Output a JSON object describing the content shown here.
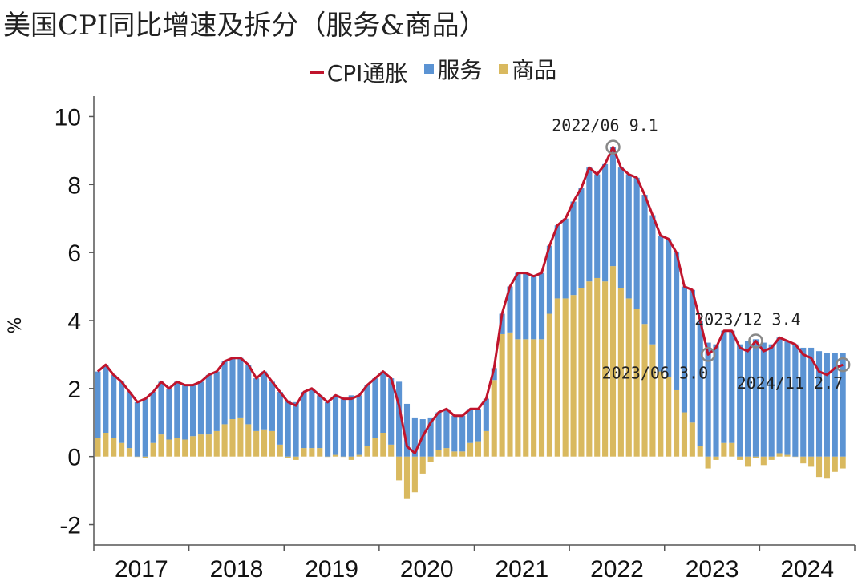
{
  "title": "美国CPI同比增速及拆分（服务&商品）",
  "legend": [
    {
      "label": "CPI通胀",
      "kind": "line",
      "color": "#c0142c"
    },
    {
      "label": "服务",
      "kind": "box",
      "color": "#5b93d3"
    },
    {
      "label": "商品",
      "kind": "box",
      "color": "#d9b95f"
    }
  ],
  "chart_data": {
    "type": "bar",
    "ylabel": "%",
    "ylim": [
      -2.6,
      10.6
    ],
    "yticks": [
      -2,
      0,
      2,
      4,
      6,
      8,
      10
    ],
    "start": "2017-01",
    "xlabels": [
      "2017",
      "2018",
      "2019",
      "2020",
      "2021",
      "2022",
      "2023",
      "2024"
    ],
    "series": [
      {
        "name": "CPI通胀",
        "type": "line",
        "color": "#c0142c",
        "values": [
          2.5,
          2.7,
          2.4,
          2.2,
          1.9,
          1.6,
          1.7,
          1.9,
          2.2,
          2.0,
          2.2,
          2.1,
          2.1,
          2.2,
          2.4,
          2.5,
          2.8,
          2.9,
          2.9,
          2.7,
          2.3,
          2.5,
          2.2,
          1.9,
          1.6,
          1.5,
          1.9,
          2.0,
          1.8,
          1.6,
          1.8,
          1.7,
          1.7,
          1.8,
          2.1,
          2.3,
          2.5,
          2.3,
          1.5,
          0.3,
          0.1,
          0.6,
          1.0,
          1.3,
          1.4,
          1.2,
          1.2,
          1.4,
          1.4,
          1.7,
          2.6,
          4.2,
          5.0,
          5.4,
          5.4,
          5.3,
          5.4,
          6.2,
          6.8,
          7.0,
          7.5,
          7.9,
          8.5,
          8.3,
          8.6,
          9.1,
          8.5,
          8.3,
          8.2,
          7.7,
          7.1,
          6.5,
          6.4,
          6.0,
          5.0,
          4.9,
          4.0,
          3.0,
          3.2,
          3.7,
          3.7,
          3.2,
          3.1,
          3.4,
          3.1,
          3.2,
          3.5,
          3.4,
          3.3,
          3.0,
          2.9,
          2.5,
          2.4,
          2.6,
          2.7
        ]
      },
      {
        "name": "服务",
        "type": "bar",
        "color": "#5b93d3",
        "values": [
          1.95,
          2.0,
          1.85,
          1.8,
          1.65,
          1.6,
          1.7,
          1.5,
          1.55,
          1.5,
          1.65,
          1.6,
          1.5,
          1.55,
          1.75,
          1.75,
          1.85,
          1.8,
          1.75,
          1.75,
          1.55,
          1.7,
          1.45,
          1.55,
          1.65,
          1.6,
          1.65,
          1.75,
          1.55,
          1.6,
          1.75,
          1.7,
          1.8,
          1.75,
          1.8,
          1.75,
          1.8,
          1.95,
          2.2,
          1.55,
          1.15,
          1.1,
          1.15,
          1.1,
          1.15,
          1.05,
          1.05,
          1.0,
          0.95,
          0.95,
          0.35,
          0.6,
          1.35,
          1.95,
          1.95,
          1.85,
          1.95,
          2.0,
          2.15,
          2.35,
          2.75,
          2.95,
          3.35,
          3.05,
          3.45,
          3.5,
          3.55,
          3.65,
          3.85,
          3.8,
          3.8,
          4.0,
          4.05,
          4.05,
          3.7,
          3.9,
          3.7,
          3.35,
          3.3,
          3.3,
          3.3,
          3.3,
          3.4,
          3.45,
          3.35,
          3.3,
          3.4,
          3.35,
          3.3,
          3.2,
          3.2,
          3.1,
          3.05,
          3.05,
          3.05
        ]
      },
      {
        "name": "商品",
        "type": "bar",
        "color": "#d9b95f",
        "values": [
          0.55,
          0.7,
          0.55,
          0.4,
          0.25,
          0.0,
          -0.05,
          0.4,
          0.65,
          0.5,
          0.55,
          0.5,
          0.6,
          0.65,
          0.65,
          0.75,
          0.95,
          1.1,
          1.15,
          0.95,
          0.75,
          0.8,
          0.75,
          0.35,
          -0.05,
          -0.1,
          0.25,
          0.25,
          0.25,
          0.0,
          0.05,
          0.0,
          -0.1,
          0.05,
          0.3,
          0.55,
          0.7,
          0.35,
          -0.7,
          -1.25,
          -1.05,
          -0.5,
          -0.15,
          0.2,
          0.25,
          0.15,
          0.15,
          0.4,
          0.45,
          0.75,
          2.25,
          3.6,
          3.65,
          3.45,
          3.45,
          3.45,
          3.45,
          4.2,
          4.65,
          4.65,
          4.75,
          4.95,
          5.15,
          5.25,
          5.15,
          5.6,
          4.95,
          4.65,
          4.35,
          3.9,
          3.3,
          2.5,
          2.35,
          1.95,
          1.3,
          1.0,
          0.3,
          -0.35,
          -0.1,
          0.4,
          0.4,
          -0.1,
          -0.3,
          -0.05,
          -0.25,
          -0.1,
          0.1,
          0.05,
          0.0,
          -0.2,
          -0.3,
          -0.6,
          -0.65,
          -0.45,
          -0.35
        ]
      }
    ],
    "annotations": [
      {
        "label": "2022/06 9.1",
        "index": 65,
        "value": 9.1,
        "pos": "above"
      },
      {
        "label": "2023/06 3.0",
        "index": 77,
        "value": 3.0,
        "pos": "below-left"
      },
      {
        "label": "2023/12 3.4",
        "index": 83,
        "value": 3.4,
        "pos": "above"
      },
      {
        "label": "2024/11 2.7",
        "index": 94,
        "value": 2.7,
        "pos": "below-left"
      }
    ]
  }
}
